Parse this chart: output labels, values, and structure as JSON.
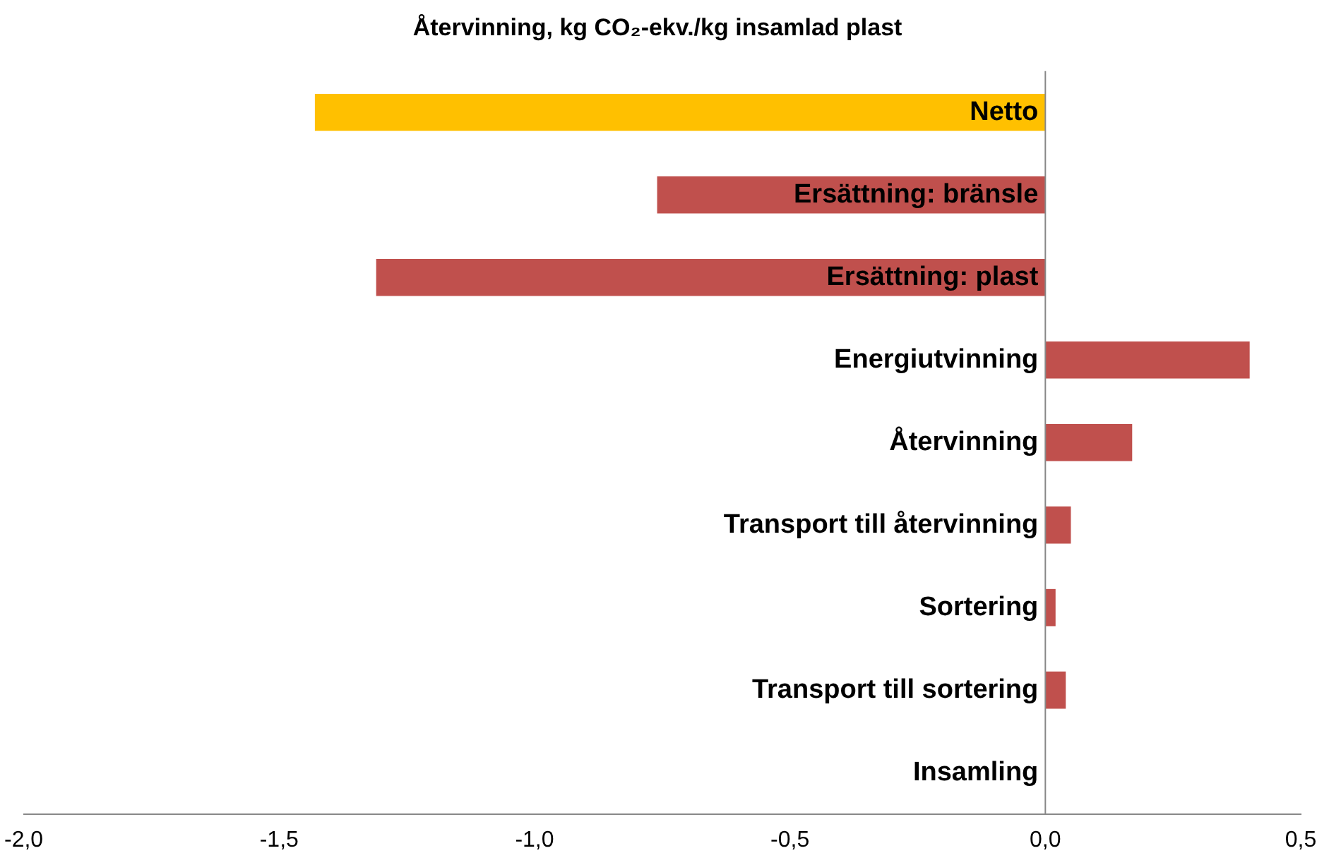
{
  "chart_data": {
    "type": "bar",
    "orientation": "horizontal",
    "title": "Återvinning, kg CO₂-ekv./kg insamlad plast",
    "categories": [
      "Netto",
      "Ersättning: bränsle",
      "Ersättning: plast",
      "Energiutvinning",
      "Återvinning",
      "Transport till återvinning",
      "Sortering",
      "Transport till sortering",
      "Insamling"
    ],
    "values": [
      -1.43,
      -0.76,
      -1.31,
      0.4,
      0.17,
      0.05,
      0.02,
      0.04,
      0
    ],
    "colors": [
      "#ffc000",
      "#c0504d",
      "#c0504d",
      "#c0504d",
      "#c0504d",
      "#c0504d",
      "#c0504d",
      "#c0504d",
      "#c0504d"
    ],
    "xlim": [
      -2,
      0.5
    ],
    "xticks": [
      {
        "value": -2,
        "label": "-2,0"
      },
      {
        "value": -1.5,
        "label": "-1,5"
      },
      {
        "value": -1,
        "label": "-1,0"
      },
      {
        "value": -0.5,
        "label": "-0,5"
      },
      {
        "value": 0,
        "label": "0,0"
      },
      {
        "value": 0.5,
        "label": "0,5"
      }
    ],
    "grid": false,
    "legend": false
  }
}
